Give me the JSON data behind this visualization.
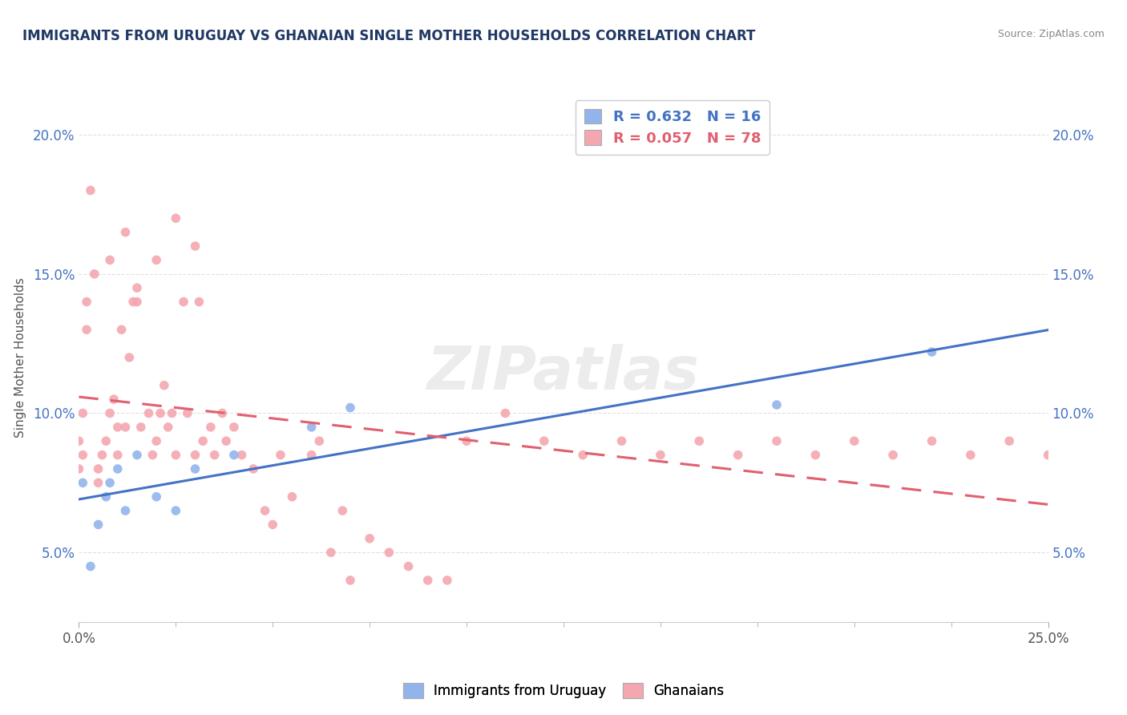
{
  "title": "IMMIGRANTS FROM URUGUAY VS GHANAIAN SINGLE MOTHER HOUSEHOLDS CORRELATION CHART",
  "source": "Source: ZipAtlas.com",
  "ylabel": "Single Mother Households",
  "xlim": [
    0.0,
    0.25
  ],
  "ylim": [
    0.025,
    0.215
  ],
  "ytick_values": [
    0.05,
    0.1,
    0.15,
    0.2
  ],
  "ytick_labels": [
    "5.0%",
    "10.0%",
    "15.0%",
    "20.0%"
  ],
  "xtick_values": [
    0.0,
    0.25
  ],
  "xtick_labels": [
    "0.0%",
    "25.0%"
  ],
  "r_uruguay": 0.632,
  "n_uruguay": 16,
  "r_ghanaian": 0.057,
  "n_ghanaian": 78,
  "color_uruguay": "#92B4EC",
  "color_ghanaian": "#F4A7B0",
  "line_color_uruguay": "#4472C4",
  "line_color_ghanaian": "#E06070",
  "watermark": "ZIPatlas",
  "background_color": "#FFFFFF",
  "grid_color": "#E0E0E0",
  "title_color": "#1F3864",
  "source_color": "#888888",
  "axis_tick_color": "#4472C4",
  "ylabel_color": "#555555",
  "uruguay_x": [
    0.001,
    0.003,
    0.005,
    0.007,
    0.008,
    0.01,
    0.012,
    0.015,
    0.02,
    0.025,
    0.03,
    0.04,
    0.06,
    0.07,
    0.18,
    0.22
  ],
  "uruguay_y": [
    0.075,
    0.045,
    0.06,
    0.07,
    0.075,
    0.08,
    0.065,
    0.085,
    0.07,
    0.065,
    0.08,
    0.085,
    0.095,
    0.102,
    0.103,
    0.122
  ],
  "ghanaian_x": [
    0.0,
    0.0,
    0.001,
    0.001,
    0.002,
    0.002,
    0.003,
    0.004,
    0.005,
    0.005,
    0.006,
    0.007,
    0.008,
    0.009,
    0.01,
    0.01,
    0.011,
    0.012,
    0.013,
    0.014,
    0.015,
    0.016,
    0.018,
    0.019,
    0.02,
    0.021,
    0.022,
    0.023,
    0.024,
    0.025,
    0.027,
    0.028,
    0.03,
    0.031,
    0.032,
    0.034,
    0.035,
    0.037,
    0.038,
    0.04,
    0.042,
    0.045,
    0.048,
    0.05,
    0.052,
    0.055,
    0.06,
    0.062,
    0.065,
    0.068,
    0.07,
    0.075,
    0.08,
    0.085,
    0.09,
    0.095,
    0.1,
    0.11,
    0.12,
    0.13,
    0.14,
    0.15,
    0.16,
    0.17,
    0.18,
    0.19,
    0.2,
    0.21,
    0.22,
    0.23,
    0.24,
    0.25,
    0.008,
    0.012,
    0.015,
    0.02,
    0.025,
    0.03
  ],
  "ghanaian_y": [
    0.08,
    0.09,
    0.085,
    0.1,
    0.14,
    0.13,
    0.18,
    0.15,
    0.075,
    0.08,
    0.085,
    0.09,
    0.1,
    0.105,
    0.085,
    0.095,
    0.13,
    0.095,
    0.12,
    0.14,
    0.14,
    0.095,
    0.1,
    0.085,
    0.09,
    0.1,
    0.11,
    0.095,
    0.1,
    0.085,
    0.14,
    0.1,
    0.085,
    0.14,
    0.09,
    0.095,
    0.085,
    0.1,
    0.09,
    0.095,
    0.085,
    0.08,
    0.065,
    0.06,
    0.085,
    0.07,
    0.085,
    0.09,
    0.05,
    0.065,
    0.04,
    0.055,
    0.05,
    0.045,
    0.04,
    0.04,
    0.09,
    0.1,
    0.09,
    0.085,
    0.09,
    0.085,
    0.09,
    0.085,
    0.09,
    0.085,
    0.09,
    0.085,
    0.09,
    0.085,
    0.09,
    0.085,
    0.155,
    0.165,
    0.145,
    0.155,
    0.17,
    0.16
  ]
}
